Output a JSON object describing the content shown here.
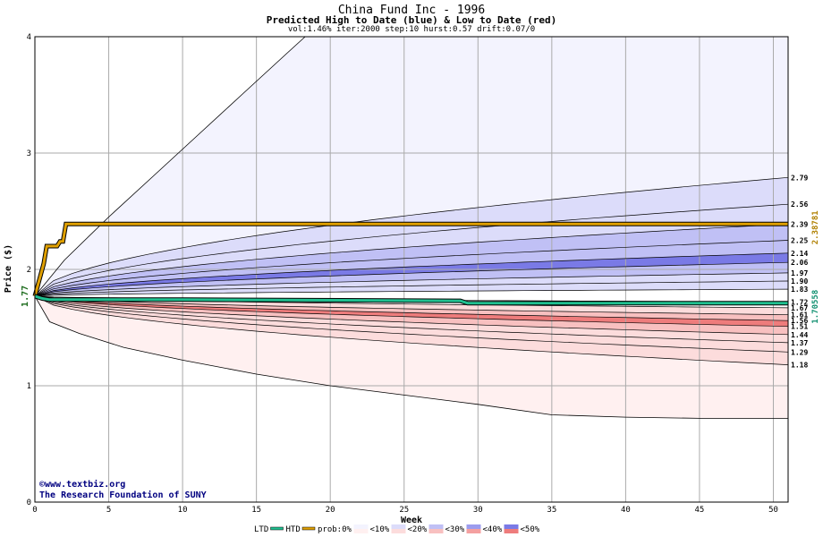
{
  "chart_data": {
    "type": "area",
    "title": "China Fund Inc - 1996",
    "subtitle": "Predicted High to Date (blue) &  Low to Date (red)",
    "params": "vol:1.46% iter:2000 step:10 hurst:0.57 drift:0.07/0",
    "xlabel": "Week",
    "ylabel": "Price ($)",
    "xlim": [
      0,
      51
    ],
    "ylim": [
      0,
      4
    ],
    "x_ticks": [
      0,
      5,
      10,
      15,
      20,
      25,
      30,
      35,
      40,
      45,
      50
    ],
    "y_ticks": [
      0,
      1,
      2,
      3,
      4
    ],
    "grid": true,
    "start_price": 1.77,
    "start_label": "1.77",
    "upper_envelope": [
      [
        0,
        1.77
      ],
      [
        2,
        2.08
      ],
      [
        5,
        2.45
      ],
      [
        8,
        2.8
      ],
      [
        11,
        3.15
      ],
      [
        14,
        3.5
      ],
      [
        17,
        3.85
      ],
      [
        18.3,
        4.0
      ]
    ],
    "lower_envelope": [
      [
        0,
        1.77
      ],
      [
        1,
        1.55
      ],
      [
        3,
        1.45
      ],
      [
        6,
        1.33
      ],
      [
        10,
        1.22
      ],
      [
        15,
        1.1
      ],
      [
        20,
        1.0
      ],
      [
        25,
        0.92
      ],
      [
        30,
        0.84
      ],
      [
        35,
        0.75
      ],
      [
        40,
        0.73
      ],
      [
        45,
        0.72
      ],
      [
        51,
        0.72
      ]
    ],
    "quantile_lines": [
      {
        "end": 2.79,
        "label": "2.79",
        "level": "blue-low"
      },
      {
        "end": 2.56,
        "label": "2.56",
        "level": "blue-low"
      },
      {
        "end": 2.39,
        "label": "2.39",
        "level": "blue-low"
      },
      {
        "end": 2.25,
        "label": "2.25",
        "level": "blue-mid"
      },
      {
        "end": 2.14,
        "label": "2.14",
        "level": "blue-high"
      },
      {
        "end": 2.06,
        "label": "2.06",
        "level": "blue-high"
      },
      {
        "end": 1.97,
        "label": "1.97",
        "level": "blue-mid"
      },
      {
        "end": 1.9,
        "label": "1.90",
        "level": "blue-low"
      },
      {
        "end": 1.83,
        "label": "1.83",
        "level": "none"
      },
      {
        "end": 1.72,
        "label": "1.72",
        "level": "none"
      },
      {
        "end": 1.67,
        "label": "1.67",
        "level": "red-low"
      },
      {
        "end": 1.61,
        "label": "1.61",
        "level": "red-mid"
      },
      {
        "end": 1.56,
        "label": "1.56",
        "level": "red-high"
      },
      {
        "end": 1.51,
        "label": "1.51",
        "level": "red-high"
      },
      {
        "end": 1.44,
        "label": "1.44",
        "level": "red-mid"
      },
      {
        "end": 1.37,
        "label": "1.37",
        "level": "red-low"
      },
      {
        "end": 1.29,
        "label": "1.29",
        "level": "red-low"
      },
      {
        "end": 1.18,
        "label": "1.18",
        "level": "red-low"
      }
    ],
    "htd_series": {
      "name": "HTD",
      "color": "#e0a000",
      "points": [
        [
          0,
          1.77
        ],
        [
          0.6,
          2.05
        ],
        [
          0.8,
          2.2
        ],
        [
          1.5,
          2.2
        ],
        [
          1.7,
          2.24
        ],
        [
          1.9,
          2.24
        ],
        [
          2.1,
          2.39
        ],
        [
          51,
          2.39
        ]
      ],
      "end_label": "2.38781"
    },
    "ltd_series": {
      "name": "LTD",
      "color": "#20c090",
      "points": [
        [
          0,
          1.77
        ],
        [
          0.5,
          1.75
        ],
        [
          1,
          1.74
        ],
        [
          10,
          1.74
        ],
        [
          28.8,
          1.73
        ],
        [
          29.3,
          1.71
        ],
        [
          51,
          1.71
        ]
      ],
      "end_label": "1.70558"
    },
    "legend": {
      "items": [
        "LTD",
        "HTD",
        "prob:0%",
        "<10%",
        "<20%",
        "<30%",
        "<40%",
        "<50%"
      ],
      "placement": "bottom"
    },
    "credit_lines": [
      "©www.textbiz.org",
      "The Research Foundation of SUNY"
    ]
  },
  "colors": {
    "htd": "#e0a000",
    "ltd": "#20c090",
    "blue_levels": [
      "#f3f3fe",
      "#dcdcfa",
      "#c0c0f5",
      "#9c9cee",
      "#7a7ae6"
    ],
    "red_levels": [
      "#fff0f0",
      "#fcdcdc",
      "#f8c0c0",
      "#f4a0a0",
      "#ee7c7c"
    ],
    "start_label": "#1a6a1a",
    "credit": "#000080"
  }
}
